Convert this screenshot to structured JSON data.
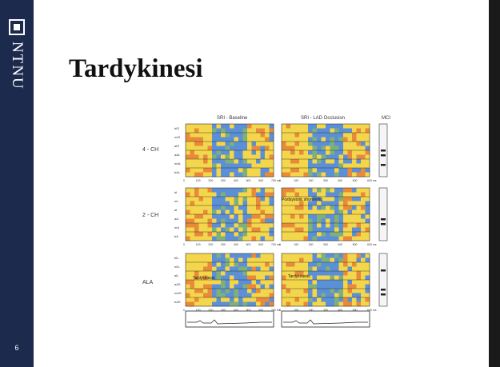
{
  "sidebar": {
    "brand": "NTNU",
    "slide_number": "6"
  },
  "slide": {
    "title": "Tardykinesi"
  },
  "figure": {
    "col_labels": [
      "SRI - Baseline",
      "SRI - LAD Occlusion",
      "MCI"
    ],
    "row_groups": [
      {
        "label": "4 - CH",
        "segments": [
          "bIS",
          "mIS",
          "aIS",
          "aAL",
          "mAL",
          "bAL"
        ]
      },
      {
        "label": "2 - CH",
        "segments": [
          "bI",
          "mI",
          "aI",
          "aA",
          "mA",
          "bA"
        ]
      },
      {
        "label": "ALA",
        "segments": [
          "bIL",
          "mIL",
          "aIL",
          "aAS",
          "mAS",
          "bAS"
        ]
      }
    ],
    "time_ticks_left": [
      "0",
      "100",
      "200",
      "300",
      "400",
      "500",
      "600",
      "700 ms"
    ],
    "time_ticks_right": [
      "0",
      "100",
      "200",
      "300",
      "400",
      "500",
      "600 ms"
    ],
    "annotations": [
      "Postsystolic shortening",
      "Tardykinesis",
      "Tardykinesis"
    ]
  },
  "colors": {
    "sidebar": "#1c2a4d",
    "strain_yellow": "#f3d64b",
    "strain_orange": "#e98a3a",
    "strain_green": "#7fb07a",
    "strain_blue": "#5b8fd6"
  }
}
